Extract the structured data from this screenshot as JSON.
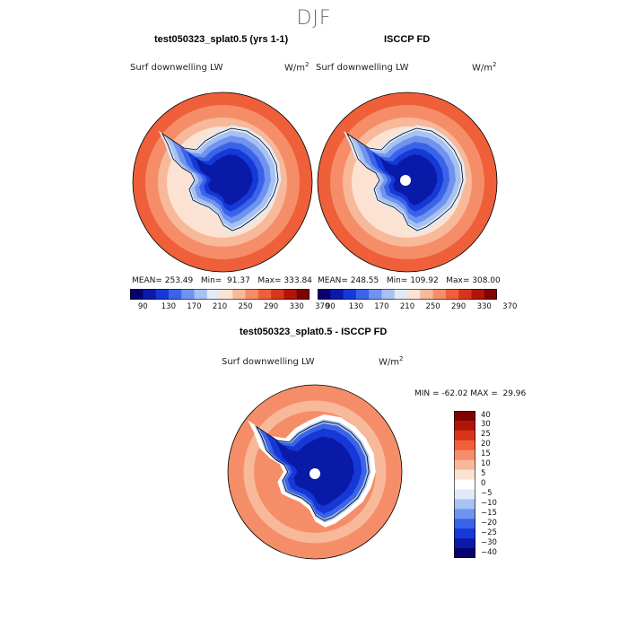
{
  "season": "DJF",
  "panels": {
    "model": {
      "title": "test050323_splat0.5 (yrs 1-1)",
      "field": "Surf downwelling LW",
      "units": "W/m",
      "units_sup": "2",
      "stats": "MEAN= 253.49   Min=  91.37   Max= 333.84"
    },
    "obs": {
      "title": "ISCCP FD",
      "field": "Surf downwelling LW",
      "units": "W/m",
      "units_sup": "2",
      "stats": "MEAN= 248.55   Min= 109.92   Max= 308.00"
    },
    "diff": {
      "title": "test050323_splat0.5 - ISCCP FD",
      "field": "Surf downwelling LW",
      "units": "W/m",
      "units_sup": "2",
      "stats": "MIN = -62.02 MAX =  29.96"
    }
  },
  "colorbar_abs": {
    "ticks": [
      "90",
      "130",
      "170",
      "210",
      "250",
      "290",
      "330",
      "370"
    ],
    "colors": [
      "#08006e",
      "#0a1aa8",
      "#1538d6",
      "#3a64e8",
      "#6f93ee",
      "#a7c1f3",
      "#e2eaf8",
      "#fbe2d2",
      "#f8b89a",
      "#f58e68",
      "#ee5f3a",
      "#d8361c",
      "#b01508",
      "#7d0400"
    ]
  },
  "colorbar_diff": {
    "ticks": [
      "40",
      "30",
      "25",
      "20",
      "15",
      "10",
      "5",
      "0",
      "−5",
      "−10",
      "−15",
      "−20",
      "−25",
      "−30",
      "−40"
    ],
    "colors": [
      "#7d0400",
      "#b01508",
      "#d8361c",
      "#ee5f3a",
      "#f58e68",
      "#f8b89a",
      "#fbe2d2",
      "#ffffff",
      "#e2eaf8",
      "#a7c1f3",
      "#6f93ee",
      "#3a64e8",
      "#1538d6",
      "#0a1aa8",
      "#08006e"
    ]
  }
}
